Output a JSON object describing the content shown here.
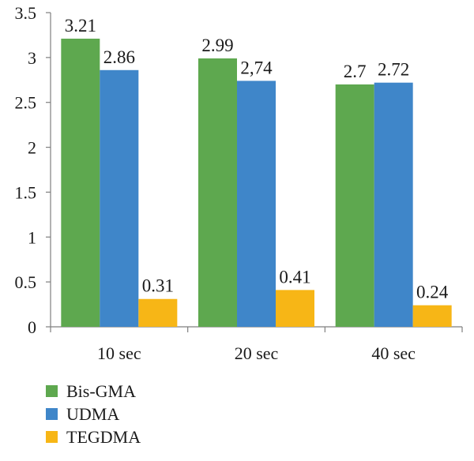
{
  "chart_data": {
    "type": "bar",
    "categories": [
      "10 sec",
      "20 sec",
      "40 sec"
    ],
    "series": [
      {
        "name": "Bis-GMA",
        "values": [
          3.21,
          2.99,
          2.7
        ],
        "labels": [
          "3.21",
          "2.99",
          "2.7"
        ],
        "color": "#5ea84f"
      },
      {
        "name": "UDMA",
        "values": [
          2.86,
          2.74,
          2.72
        ],
        "labels": [
          "2.86",
          "2,74",
          "2.72"
        ],
        "color": "#3f86c9"
      },
      {
        "name": "TEGDMA",
        "values": [
          0.31,
          0.41,
          0.24
        ],
        "labels": [
          "0.31",
          "0.41",
          "0.24"
        ],
        "color": "#f7b616"
      }
    ],
    "y_ticks": [
      "0",
      "0.5",
      "1",
      "1.5",
      "2",
      "2.5",
      "3",
      "3.5"
    ],
    "ylim": [
      0,
      3.5
    ],
    "grid": false,
    "legend_position": "bottom-left",
    "title": "",
    "xlabel": "",
    "ylabel": ""
  }
}
